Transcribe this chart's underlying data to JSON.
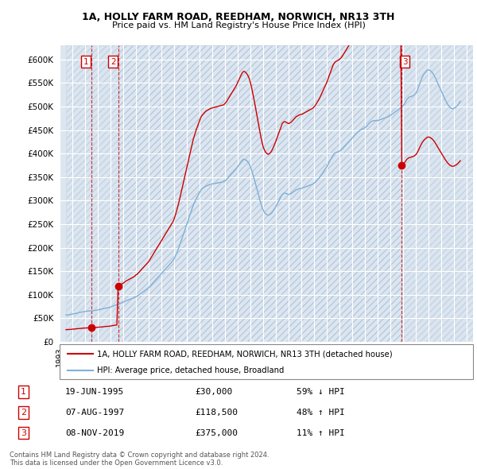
{
  "title": "1A, HOLLY FARM ROAD, REEDHAM, NORWICH, NR13 3TH",
  "subtitle": "Price paid vs. HM Land Registry's House Price Index (HPI)",
  "legend_line1": "1A, HOLLY FARM ROAD, REEDHAM, NORWICH, NR13 3TH (detached house)",
  "legend_line2": "HPI: Average price, detached house, Broadland",
  "footer_line1": "Contains HM Land Registry data © Crown copyright and database right 2024.",
  "footer_line2": "This data is licensed under the Open Government Licence v3.0.",
  "sale_color": "#cc0000",
  "hpi_color": "#7fb0d8",
  "background_plot": "#dce6f0",
  "hatch_color": "#c0cce0",
  "grid_color": "#ffffff",
  "ylim": [
    0,
    630000
  ],
  "yticks": [
    0,
    50000,
    100000,
    150000,
    200000,
    250000,
    300000,
    350000,
    400000,
    450000,
    500000,
    550000,
    600000
  ],
  "xlim": [
    1993.5,
    2025.5
  ],
  "sales": [
    {
      "date_num": 1995.47,
      "price": 30000,
      "label": "1"
    },
    {
      "date_num": 1997.6,
      "price": 118500,
      "label": "2"
    },
    {
      "date_num": 2019.85,
      "price": 375000,
      "label": "3"
    }
  ],
  "table_rows": [
    {
      "num": "1",
      "date": "19-JUN-1995",
      "price": "£30,000",
      "hpi_rel": "59% ↓ HPI"
    },
    {
      "num": "2",
      "date": "07-AUG-1997",
      "price": "£118,500",
      "hpi_rel": "48% ↑ HPI"
    },
    {
      "num": "3",
      "date": "08-NOV-2019",
      "price": "£375,000",
      "hpi_rel": "11% ↑ HPI"
    }
  ],
  "hpi_data_years": [
    1993.5,
    1993.6,
    1993.7,
    1993.8,
    1993.9,
    1994.0,
    1994.1,
    1994.2,
    1994.3,
    1994.4,
    1994.5,
    1994.6,
    1994.7,
    1994.8,
    1994.9,
    1995.0,
    1995.1,
    1995.2,
    1995.3,
    1995.4,
    1995.5,
    1995.6,
    1995.7,
    1995.8,
    1995.9,
    1996.0,
    1996.1,
    1996.2,
    1996.3,
    1996.4,
    1996.5,
    1996.6,
    1996.7,
    1996.8,
    1996.9,
    1997.0,
    1997.1,
    1997.2,
    1997.3,
    1997.4,
    1997.5,
    1997.6,
    1997.7,
    1997.8,
    1997.9,
    1998.0,
    1998.1,
    1998.2,
    1998.3,
    1998.4,
    1998.5,
    1998.6,
    1998.7,
    1998.8,
    1998.9,
    1999.0,
    1999.1,
    1999.2,
    1999.3,
    1999.4,
    1999.5,
    1999.6,
    1999.7,
    1999.8,
    1999.9,
    2000.0,
    2000.1,
    2000.2,
    2000.3,
    2000.4,
    2000.5,
    2000.6,
    2000.7,
    2000.8,
    2000.9,
    2001.0,
    2001.1,
    2001.2,
    2001.3,
    2001.4,
    2001.5,
    2001.6,
    2001.7,
    2001.8,
    2001.9,
    2002.0,
    2002.1,
    2002.2,
    2002.3,
    2002.4,
    2002.5,
    2002.6,
    2002.7,
    2002.8,
    2002.9,
    2003.0,
    2003.1,
    2003.2,
    2003.3,
    2003.4,
    2003.5,
    2003.6,
    2003.7,
    2003.8,
    2003.9,
    2004.0,
    2004.1,
    2004.2,
    2004.3,
    2004.4,
    2004.5,
    2004.6,
    2004.7,
    2004.8,
    2004.9,
    2005.0,
    2005.1,
    2005.2,
    2005.3,
    2005.4,
    2005.5,
    2005.6,
    2005.7,
    2005.8,
    2005.9,
    2006.0,
    2006.1,
    2006.2,
    2006.3,
    2006.4,
    2006.5,
    2006.6,
    2006.7,
    2006.8,
    2006.9,
    2007.0,
    2007.1,
    2007.2,
    2007.3,
    2007.4,
    2007.5,
    2007.6,
    2007.7,
    2007.8,
    2007.9,
    2008.0,
    2008.1,
    2008.2,
    2008.3,
    2008.4,
    2008.5,
    2008.6,
    2008.7,
    2008.8,
    2008.9,
    2009.0,
    2009.1,
    2009.2,
    2009.3,
    2009.4,
    2009.5,
    2009.6,
    2009.7,
    2009.8,
    2009.9,
    2010.0,
    2010.1,
    2010.2,
    2010.3,
    2010.4,
    2010.5,
    2010.6,
    2010.7,
    2010.8,
    2010.9,
    2011.0,
    2011.1,
    2011.2,
    2011.3,
    2011.4,
    2011.5,
    2011.6,
    2011.7,
    2011.8,
    2011.9,
    2012.0,
    2012.1,
    2012.2,
    2012.3,
    2012.4,
    2012.5,
    2012.6,
    2012.7,
    2012.8,
    2012.9,
    2013.0,
    2013.1,
    2013.2,
    2013.3,
    2013.4,
    2013.5,
    2013.6,
    2013.7,
    2013.8,
    2013.9,
    2014.0,
    2014.1,
    2014.2,
    2014.3,
    2014.4,
    2014.5,
    2014.6,
    2014.7,
    2014.8,
    2014.9,
    2015.0,
    2015.1,
    2015.2,
    2015.3,
    2015.4,
    2015.5,
    2015.6,
    2015.7,
    2015.8,
    2015.9,
    2016.0,
    2016.1,
    2016.2,
    2016.3,
    2016.4,
    2016.5,
    2016.6,
    2016.7,
    2016.8,
    2016.9,
    2017.0,
    2017.1,
    2017.2,
    2017.3,
    2017.4,
    2017.5,
    2017.6,
    2017.7,
    2017.8,
    2017.9,
    2018.0,
    2018.1,
    2018.2,
    2018.3,
    2018.4,
    2018.5,
    2018.6,
    2018.7,
    2018.8,
    2018.9,
    2019.0,
    2019.1,
    2019.2,
    2019.3,
    2019.4,
    2019.5,
    2019.6,
    2019.7,
    2019.8,
    2019.9,
    2020.0,
    2020.1,
    2020.2,
    2020.3,
    2020.4,
    2020.5,
    2020.6,
    2020.7,
    2020.8,
    2020.9,
    2021.0,
    2021.1,
    2021.2,
    2021.3,
    2021.4,
    2021.5,
    2021.6,
    2021.7,
    2021.8,
    2021.9,
    2022.0,
    2022.1,
    2022.2,
    2022.3,
    2022.4,
    2022.5,
    2022.6,
    2022.7,
    2022.8,
    2022.9,
    2023.0,
    2023.1,
    2023.2,
    2023.3,
    2023.4,
    2023.5,
    2023.6,
    2023.7,
    2023.8,
    2023.9,
    2024.0,
    2024.1,
    2024.2,
    2024.3,
    2024.4,
    2024.5
  ],
  "hpi_data_values": [
    57000,
    57200,
    57500,
    57800,
    58000,
    59000,
    59500,
    60000,
    60500,
    61000,
    62000,
    62500,
    63000,
    63500,
    64000,
    64500,
    65000,
    65200,
    65500,
    65800,
    66000,
    66200,
    66500,
    66800,
    67000,
    68000,
    68500,
    69000,
    69500,
    70000,
    71000,
    71500,
    72000,
    72500,
    73000,
    74000,
    75000,
    76000,
    77000,
    78000,
    79000,
    80000,
    81000,
    82000,
    83000,
    84000,
    85500,
    87000,
    88000,
    89000,
    90000,
    91000,
    92000,
    93000,
    94000,
    96000,
    97000,
    99000,
    101000,
    103000,
    105000,
    107000,
    109000,
    111000,
    113000,
    115000,
    118000,
    121000,
    124000,
    127000,
    130000,
    133000,
    136000,
    139000,
    142000,
    145000,
    148000,
    151000,
    154000,
    157000,
    160000,
    163000,
    166000,
    169000,
    172000,
    176000,
    182000,
    188000,
    195000,
    202000,
    210000,
    218000,
    226000,
    234000,
    242000,
    250000,
    258000,
    266000,
    274000,
    282000,
    290000,
    296000,
    302000,
    307000,
    312000,
    317000,
    322000,
    325000,
    327000,
    329000,
    331000,
    332000,
    333000,
    334000,
    335000,
    335500,
    336000,
    336500,
    337000,
    337500,
    338000,
    338500,
    339000,
    339500,
    340000,
    342000,
    344000,
    347000,
    350000,
    353000,
    356000,
    359000,
    362000,
    365000,
    368000,
    372000,
    376000,
    380000,
    384000,
    387000,
    388000,
    387000,
    385000,
    382000,
    378000,
    372000,
    364000,
    355000,
    346000,
    336000,
    326000,
    316000,
    306000,
    296000,
    287000,
    280000,
    275000,
    272000,
    270000,
    269000,
    270000,
    272000,
    275000,
    279000,
    283000,
    288000,
    293000,
    298000,
    303000,
    308000,
    313000,
    315000,
    316000,
    315000,
    314000,
    313000,
    314000,
    315000,
    317000,
    319000,
    321000,
    323000,
    324000,
    325000,
    326000,
    326000,
    327000,
    328000,
    329000,
    330000,
    331000,
    332000,
    333000,
    334000,
    335000,
    337000,
    339000,
    342000,
    345000,
    348000,
    352000,
    356000,
    360000,
    364000,
    368000,
    372000,
    377000,
    382000,
    387000,
    392000,
    397000,
    400000,
    402000,
    403000,
    404000,
    405000,
    407000,
    409000,
    412000,
    415000,
    418000,
    421000,
    424000,
    427000,
    430000,
    433000,
    436000,
    439000,
    442000,
    445000,
    447000,
    449000,
    451000,
    452000,
    453000,
    455000,
    457000,
    460000,
    463000,
    466000,
    468000,
    469000,
    470000,
    470000,
    470000,
    470000,
    471000,
    472000,
    473000,
    474000,
    475000,
    476000,
    477000,
    478000,
    479000,
    481000,
    483000,
    485000,
    487000,
    489000,
    491000,
    493000,
    495000,
    497000,
    499000,
    502000,
    505000,
    510000,
    515000,
    518000,
    520000,
    521000,
    522000,
    523000,
    525000,
    528000,
    533000,
    540000,
    548000,
    555000,
    562000,
    567000,
    571000,
    574000,
    577000,
    578000,
    577000,
    575000,
    572000,
    568000,
    563000,
    557000,
    551000,
    545000,
    539000,
    533000,
    527000,
    521000,
    515000,
    510000,
    505000,
    501000,
    498000,
    496000,
    495000,
    496000,
    498000,
    500000,
    503000,
    507000,
    511000
  ]
}
